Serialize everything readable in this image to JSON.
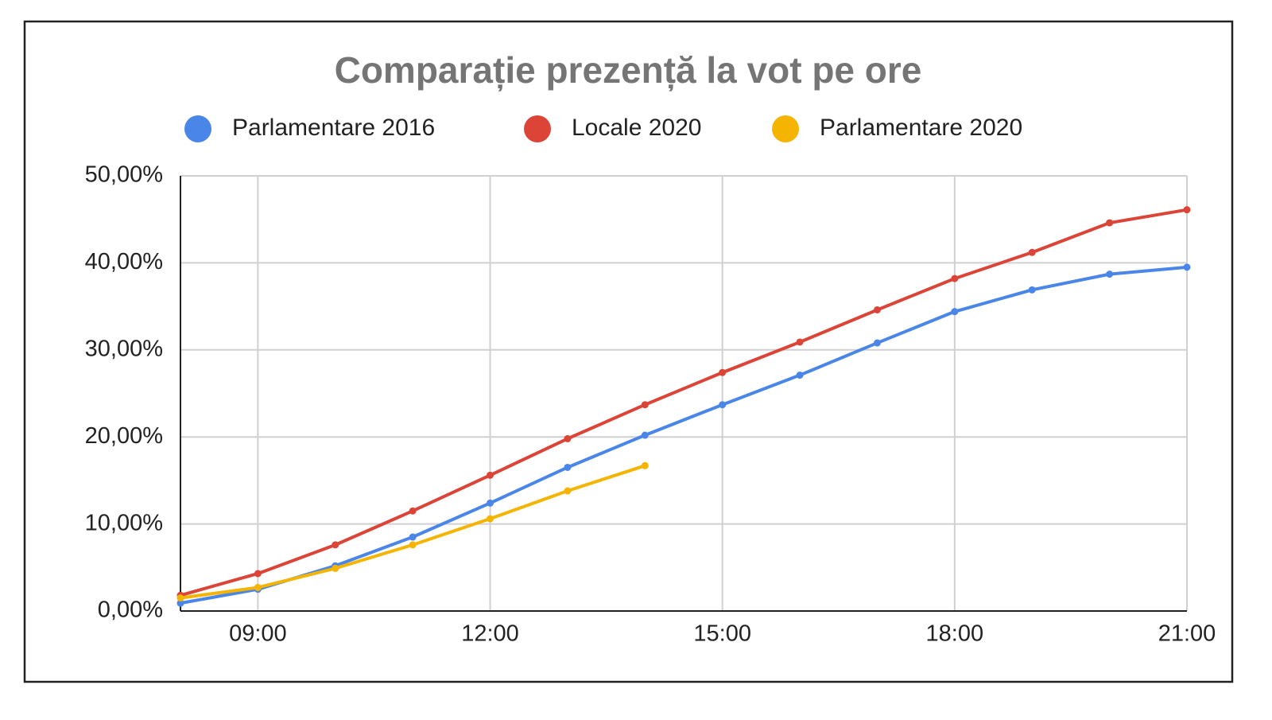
{
  "chart_data": {
    "type": "line",
    "title": "Comparație prezență la vot pe ore",
    "x": [
      8,
      9,
      10,
      11,
      12,
      13,
      14,
      15,
      16,
      17,
      18,
      19,
      20,
      21
    ],
    "series": [
      {
        "name": "Parlamentare 2016",
        "color": "#4a86e8",
        "values": [
          0.9,
          2.5,
          5.2,
          8.5,
          12.4,
          16.5,
          20.2,
          23.7,
          27.1,
          30.8,
          34.4,
          36.9,
          38.7,
          39.5
        ]
      },
      {
        "name": "Locale 2020",
        "color": "#db4437",
        "values": [
          1.8,
          4.3,
          7.6,
          11.5,
          15.6,
          19.8,
          23.7,
          27.4,
          30.9,
          34.6,
          38.2,
          41.2,
          44.6,
          46.1
        ]
      },
      {
        "name": "Parlamentare 2020",
        "color": "#f4b400",
        "values": [
          1.5,
          2.7,
          4.9,
          7.6,
          10.6,
          13.8,
          16.7,
          null,
          null,
          null,
          null,
          null,
          null,
          null
        ]
      }
    ],
    "xlim": [
      8,
      21
    ],
    "xticks": [
      {
        "value": 9,
        "label": "09:00"
      },
      {
        "value": 12,
        "label": "12:00"
      },
      {
        "value": 15,
        "label": "15:00"
      },
      {
        "value": 18,
        "label": "18:00"
      },
      {
        "value": 21,
        "label": "21:00"
      }
    ],
    "ylim": [
      0,
      50
    ],
    "yticks": [
      {
        "value": 0,
        "label": "0,00%"
      },
      {
        "value": 10,
        "label": "10,00%"
      },
      {
        "value": 20,
        "label": "20,00%"
      },
      {
        "value": 30,
        "label": "30,00%"
      },
      {
        "value": 40,
        "label": "40,00%"
      },
      {
        "value": 50,
        "label": "50,00%"
      }
    ],
    "grid": true,
    "legend": "top"
  }
}
